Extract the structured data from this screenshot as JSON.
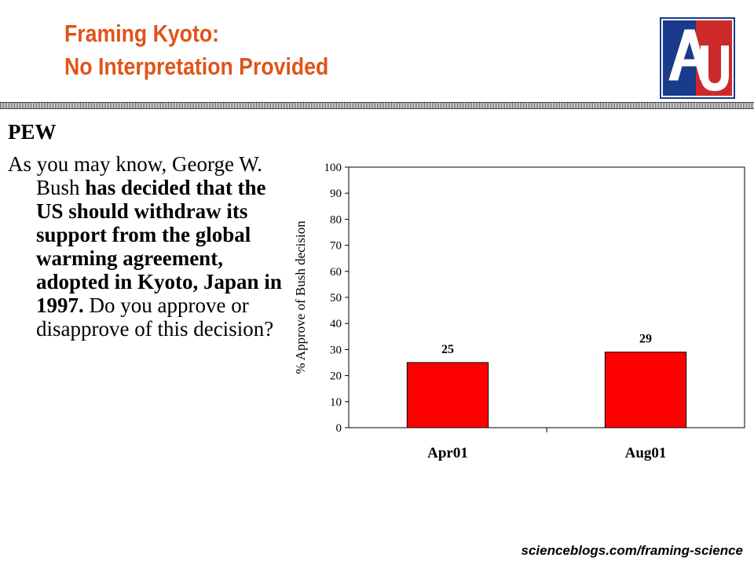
{
  "slide": {
    "title_line1": "Framing Kyoto:",
    "title_line2": "No Interpretation Provided",
    "source_label": "PEW",
    "question": {
      "part1": "As you may know, George W. Bush ",
      "part2": "has decided that the US should withdraw its support from the global warming agreement, adopted in Kyoto, Japan in 1997.",
      "part3": "  Do you approve or disapprove of this decision?"
    },
    "footer": "scienceblogs.com/framing-science",
    "colors": {
      "title": "#e0541a",
      "bar": "#ff0000",
      "logo_red": "#cc2a2a",
      "logo_blue": "#1a3a8a"
    },
    "logo_icon": "american-university-logo"
  },
  "chart_data": {
    "type": "bar",
    "categories": [
      "Apr01",
      "Aug01"
    ],
    "values": [
      25,
      29
    ],
    "data_labels": [
      "25",
      "29"
    ],
    "ylabel": "% Approve of Bush decision",
    "xlabel": "",
    "ylim": [
      0,
      100
    ],
    "yticks": [
      "0",
      "10",
      "20",
      "30",
      "40",
      "50",
      "60",
      "70",
      "80",
      "90",
      "100"
    ],
    "grid": false,
    "bar_color": "#ff0000"
  }
}
